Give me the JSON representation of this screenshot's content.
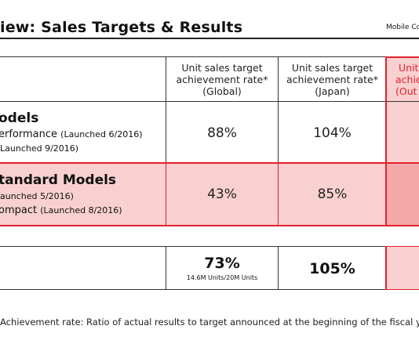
{
  "title": "iew: Sales Targets & Results",
  "department": "Mobile Co",
  "columns": [
    {
      "label": "Unit sales target achievement rate* (Global)",
      "lines": [
        "Unit sales target",
        "achievement rate*",
        "(Global)"
      ]
    },
    {
      "label": "Unit sales target achievement rate* (Japan)",
      "lines": [
        "Unit sales target",
        "achievement rate*",
        "(Japan)"
      ]
    },
    {
      "label": "Unit sales target achievement rate* (Out...",
      "lines": [
        "Unit",
        "achie",
        "(Out"
      ]
    }
  ],
  "rows": [
    {
      "title": "odels",
      "sub1": "erformance",
      "sub1_note": "(Launched 6/2016)",
      "sub2": "",
      "sub2_note": "Launched 9/2016)",
      "global": "88%",
      "japan": "104%"
    },
    {
      "title": "tandard Models",
      "sub1": "",
      "sub1_note": "aunched 5/2016)",
      "sub2": "ompact",
      "sub2_note": "(Launched 8/2016)",
      "global": "43%",
      "japan": "85%"
    }
  ],
  "total": {
    "global": "73%",
    "global_detail": "14.6M Units/20M Units",
    "japan": "105%"
  },
  "footnote": "Achievement rate: Ratio of actual results to target announced at the beginning of the fiscal ye",
  "colors": {
    "accent_red": "#e0222d",
    "pink": "#f9d0d0",
    "pink_dark": "#f4a9a9"
  }
}
